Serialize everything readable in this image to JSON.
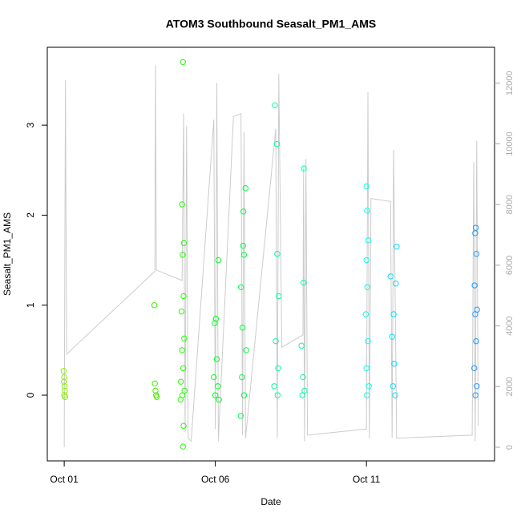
{
  "chart_data": {
    "type": "scatter",
    "title": "ATOM3 Southbound Seasalt_PM1_AMS",
    "x_label": "Date",
    "y_label": "Seasalt_PM1_AMS",
    "xlim": [
      0.44,
      15.24
    ],
    "xticks": [
      {
        "value": 1,
        "label": "Oct 01"
      },
      {
        "value": 6,
        "label": "Oct 06"
      },
      {
        "value": 11,
        "label": "Oct 11"
      }
    ],
    "ylim": [
      -0.73,
      3.865
    ],
    "yticks": [
      0,
      1,
      2,
      3
    ],
    "y2lim": [
      -449,
      13184
    ],
    "y2ticks": [
      0,
      2000,
      4000,
      6000,
      8000,
      10000,
      12000
    ],
    "series": [
      {
        "type": "line",
        "axis": "y2",
        "color": "#cccccc",
        "x": [
          1.0,
          1.04,
          1.08,
          4.0,
          4.02,
          4.05,
          4.9,
          4.95,
          5.0,
          5.05,
          5.1,
          5.2,
          5.95,
          6.0,
          6.05,
          6.1,
          6.6,
          6.85,
          6.9,
          6.95,
          7.0,
          8.0,
          8.05,
          8.1,
          8.2,
          8.9,
          8.92,
          8.95,
          9.0,
          9.05,
          11.0,
          11.05,
          11.1,
          11.15,
          11.8,
          11.85,
          11.9,
          12.0,
          14.5,
          14.55,
          14.6,
          14.65,
          14.7
        ],
        "values": [
          0,
          12100,
          3070,
          5800,
          12600,
          5840,
          5500,
          11000,
          500,
          10600,
          300,
          200,
          10800,
          600,
          12000,
          200,
          10900,
          11000,
          400,
          10400,
          300,
          10500,
          300,
          12300,
          3300,
          3700,
          9200,
          200,
          9500,
          400,
          600,
          11700,
          300,
          8200,
          8100,
          300,
          9800,
          300,
          400,
          9400,
          200,
          10100,
          700
        ]
      },
      {
        "color": "#88ee00",
        "x": [
          0.98,
          1.0,
          1.01,
          1.02,
          1.0,
          1.03,
          0.99
        ],
        "values": [
          0.27,
          0.2,
          0.1,
          0.05,
          0,
          -0.02,
          0.15
        ]
      },
      {
        "color": "#44ee00",
        "x": [
          3.98,
          4.0,
          4.02,
          4.04,
          4.06
        ],
        "values": [
          1.0,
          0.13,
          0.05,
          0,
          -0.02
        ]
      },
      {
        "color": "#22ff00",
        "x": [
          4.93,
          4.9,
          4.96,
          4.92,
          4.95,
          4.88,
          4.97,
          4.9,
          4.94,
          4.86,
          4.98,
          4.91,
          4.85,
          4.95,
          4.93
        ],
        "values": [
          3.7,
          2.12,
          1.69,
          1.56,
          1.1,
          0.93,
          0.63,
          0.5,
          0.3,
          0.15,
          0.05,
          0,
          -0.05,
          -0.34,
          -0.57
        ]
      },
      {
        "color": "#00ff22",
        "x": [
          6.1,
          6.02,
          5.98,
          6.05,
          5.95,
          6.08,
          6.0,
          6.12
        ],
        "values": [
          1.5,
          0.85,
          0.8,
          0.4,
          0.2,
          0.1,
          0,
          -0.05
        ]
      },
      {
        "color": "#00ff44",
        "x": [
          7.0,
          6.93,
          6.92,
          6.95,
          6.85,
          6.9,
          7.02,
          6.88,
          6.95,
          6.84
        ],
        "values": [
          2.3,
          2.04,
          1.66,
          1.56,
          1.2,
          0.75,
          0.5,
          0.2,
          0,
          -0.23
        ]
      },
      {
        "color": "#00ff99",
        "x": [
          7.97,
          8.04,
          8.05,
          8.1,
          8.0,
          8.08,
          7.95,
          8.06
        ],
        "values": [
          3.22,
          2.79,
          1.57,
          1.1,
          0.6,
          0.3,
          0.1,
          0
        ]
      },
      {
        "color": "#00ffaa",
        "x": [
          8.93,
          8.92,
          8.85,
          8.9,
          8.95,
          8.88
        ],
        "values": [
          2.52,
          1.25,
          0.55,
          0.2,
          0.05,
          0
        ]
      },
      {
        "color": "#00ffee",
        "x": [
          11.0,
          11.02,
          11.06,
          11.0,
          11.03,
          10.98,
          11.05,
          11.0,
          11.08,
          11.02
        ],
        "values": [
          2.32,
          2.05,
          1.72,
          1.5,
          1.2,
          0.9,
          0.6,
          0.3,
          0.1,
          0
        ]
      },
      {
        "color": "#00e0ff",
        "x": [
          12.0,
          11.8,
          11.97,
          11.9,
          11.85,
          11.92,
          11.88,
          11.95
        ],
        "values": [
          1.65,
          1.32,
          1.24,
          0.9,
          0.65,
          0.35,
          0.1,
          0
        ]
      },
      {
        "color": "#2299ff",
        "x": [
          14.62,
          14.6,
          14.64,
          14.58,
          14.66,
          14.6,
          14.63,
          14.57,
          14.65,
          14.61
        ],
        "values": [
          1.86,
          1.8,
          1.57,
          1.22,
          0.95,
          0.9,
          0.6,
          0.3,
          0.1,
          0
        ]
      }
    ]
  }
}
